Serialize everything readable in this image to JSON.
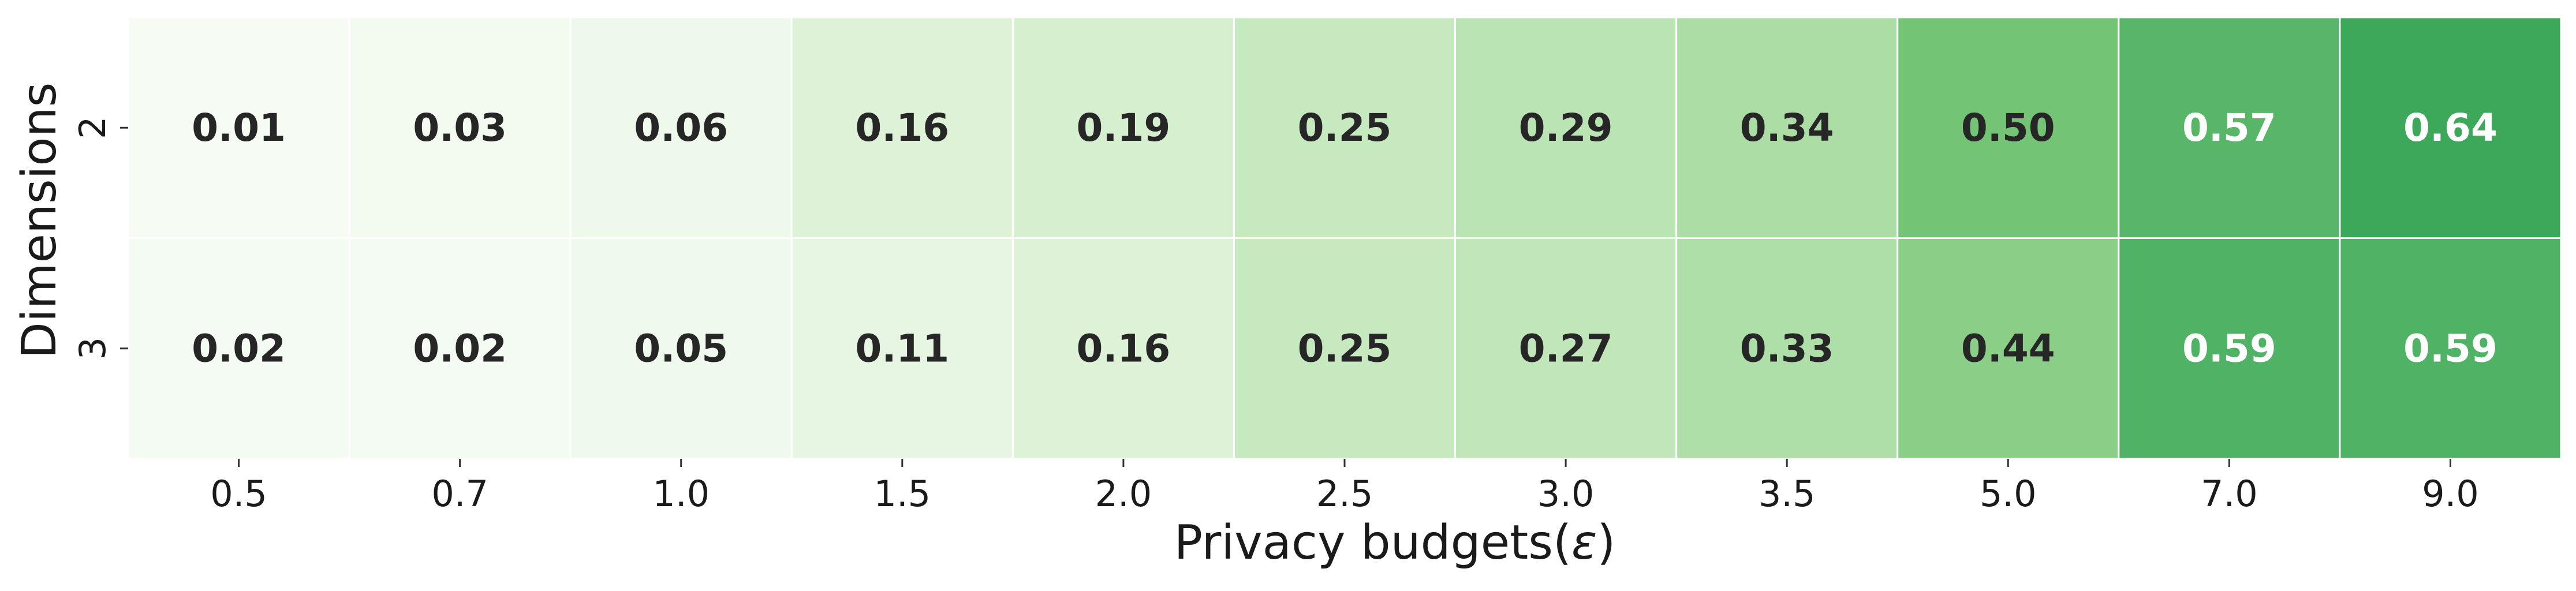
{
  "chart_data": {
    "type": "heatmap",
    "xlabel": "Privacy budgets(ε)",
    "xlabel_prefix": "Privacy budgets(",
    "xlabel_symbol": "ε",
    "xlabel_suffix": ")",
    "ylabel": "Dimensions",
    "x_categories": [
      "0.5",
      "0.7",
      "1.0",
      "1.5",
      "2.0",
      "2.5",
      "3.0",
      "3.5",
      "5.0",
      "7.0",
      "9.0"
    ],
    "y_categories": [
      "2",
      "3"
    ],
    "values": [
      [
        0.01,
        0.03,
        0.06,
        0.16,
        0.19,
        0.25,
        0.29,
        0.34,
        0.5,
        0.57,
        0.64
      ],
      [
        0.02,
        0.02,
        0.05,
        0.11,
        0.16,
        0.25,
        0.27,
        0.33,
        0.44,
        0.59,
        0.59
      ]
    ],
    "cell_labels": [
      [
        "0.01",
        "0.03",
        "0.06",
        "0.16",
        "0.19",
        "0.25",
        "0.29",
        "0.34",
        "0.50",
        "0.57",
        "0.64"
      ],
      [
        "0.02",
        "0.02",
        "0.05",
        "0.11",
        "0.16",
        "0.25",
        "0.27",
        "0.33",
        "0.44",
        "0.59",
        "0.59"
      ]
    ],
    "colormap": "Greens",
    "color_range": [
      0,
      1
    ],
    "colorbar": false,
    "grid": false,
    "colors": {
      "dark_text": "#262626",
      "light_text": "#ffffff",
      "cell_border": "#ffffff",
      "axis_text": "#1a1a1a"
    }
  }
}
